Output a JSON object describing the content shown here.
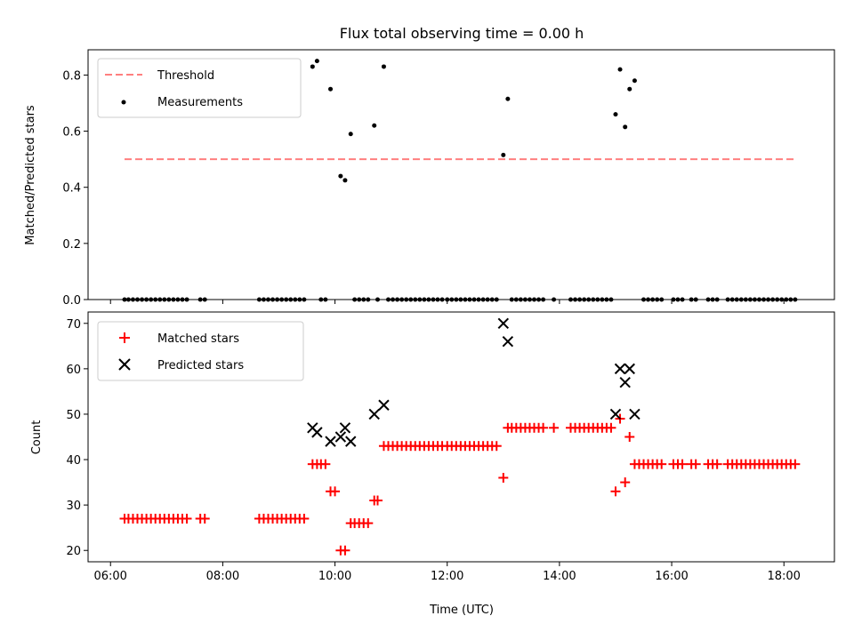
{
  "chart_data": [
    {
      "type": "scatter",
      "title": "Flux total observing time = 0.00 h",
      "xlabel": "",
      "ylabel": "Matched/Predicted stars",
      "xlim": [
        5.6,
        18.9
      ],
      "ylim": [
        0,
        0.89
      ],
      "yticks": [
        0.0,
        0.2,
        0.4,
        0.6,
        0.8
      ],
      "ytick_labels": [
        "0.0",
        "0.2",
        "0.4",
        "0.6",
        "0.8"
      ],
      "xticks": [
        6,
        8,
        10,
        12,
        14,
        16,
        18
      ],
      "show_xtick_labels": false,
      "grid": false,
      "legend_position": "upper left",
      "legend": [
        "Threshold",
        "Measurements"
      ],
      "threshold": {
        "name": "Threshold",
        "value": 0.5,
        "x": [
          6.25,
          18.2
        ],
        "color": "#ff7f7f",
        "style": "dashed"
      },
      "measurements": {
        "name": "Measurements",
        "color": "#000000",
        "points": [
          [
            6.25,
            0
          ],
          [
            6.32,
            0
          ],
          [
            6.4,
            0
          ],
          [
            6.48,
            0
          ],
          [
            6.56,
            0
          ],
          [
            6.64,
            0
          ],
          [
            6.72,
            0
          ],
          [
            6.8,
            0
          ],
          [
            6.88,
            0
          ],
          [
            6.96,
            0
          ],
          [
            7.04,
            0
          ],
          [
            7.12,
            0
          ],
          [
            7.2,
            0
          ],
          [
            7.28,
            0
          ],
          [
            7.36,
            0
          ],
          [
            7.6,
            0
          ],
          [
            7.68,
            0
          ],
          [
            8.65,
            0
          ],
          [
            8.73,
            0
          ],
          [
            8.81,
            0
          ],
          [
            8.89,
            0
          ],
          [
            8.97,
            0
          ],
          [
            9.05,
            0
          ],
          [
            9.13,
            0
          ],
          [
            9.21,
            0
          ],
          [
            9.29,
            0
          ],
          [
            9.37,
            0
          ],
          [
            9.45,
            0
          ],
          [
            9.6,
            0.83
          ],
          [
            9.68,
            0.85
          ],
          [
            9.75,
            0
          ],
          [
            9.83,
            0
          ],
          [
            9.92,
            0.75
          ],
          [
            10.1,
            0.44
          ],
          [
            10.18,
            0.425
          ],
          [
            10.28,
            0.59
          ],
          [
            10.35,
            0
          ],
          [
            10.43,
            0
          ],
          [
            10.51,
            0
          ],
          [
            10.59,
            0
          ],
          [
            10.7,
            0.62
          ],
          [
            10.76,
            0
          ],
          [
            10.87,
            0.83
          ],
          [
            10.95,
            0
          ],
          [
            11.03,
            0
          ],
          [
            11.11,
            0
          ],
          [
            11.19,
            0
          ],
          [
            11.27,
            0
          ],
          [
            11.35,
            0
          ],
          [
            11.43,
            0
          ],
          [
            11.51,
            0
          ],
          [
            11.59,
            0
          ],
          [
            11.67,
            0
          ],
          [
            11.75,
            0
          ],
          [
            11.83,
            0
          ],
          [
            11.91,
            0
          ],
          [
            12.0,
            0
          ],
          [
            12.08,
            0
          ],
          [
            12.16,
            0
          ],
          [
            12.24,
            0
          ],
          [
            12.32,
            0
          ],
          [
            12.4,
            0
          ],
          [
            12.48,
            0
          ],
          [
            12.56,
            0
          ],
          [
            12.64,
            0
          ],
          [
            12.72,
            0
          ],
          [
            12.8,
            0
          ],
          [
            12.88,
            0
          ],
          [
            13.0,
            0.515
          ],
          [
            13.08,
            0.715
          ],
          [
            13.15,
            0
          ],
          [
            13.23,
            0
          ],
          [
            13.31,
            0
          ],
          [
            13.39,
            0
          ],
          [
            13.47,
            0
          ],
          [
            13.55,
            0
          ],
          [
            13.63,
            0
          ],
          [
            13.71,
            0
          ],
          [
            13.9,
            0
          ],
          [
            14.2,
            0
          ],
          [
            14.28,
            0
          ],
          [
            14.36,
            0
          ],
          [
            14.44,
            0
          ],
          [
            14.52,
            0
          ],
          [
            14.6,
            0
          ],
          [
            14.68,
            0
          ],
          [
            14.76,
            0
          ],
          [
            14.84,
            0
          ],
          [
            14.92,
            0
          ],
          [
            15.0,
            0.66
          ],
          [
            15.08,
            0.82
          ],
          [
            15.17,
            0.615
          ],
          [
            15.25,
            0.75
          ],
          [
            15.34,
            0.78
          ],
          [
            15.5,
            0
          ],
          [
            15.58,
            0
          ],
          [
            15.66,
            0
          ],
          [
            15.74,
            0
          ],
          [
            15.82,
            0
          ],
          [
            16.03,
            0
          ],
          [
            16.11,
            0
          ],
          [
            16.19,
            0
          ],
          [
            16.35,
            0
          ],
          [
            16.43,
            0
          ],
          [
            16.65,
            0
          ],
          [
            16.73,
            0
          ],
          [
            16.81,
            0
          ],
          [
            17.0,
            0
          ],
          [
            17.08,
            0
          ],
          [
            17.16,
            0
          ],
          [
            17.24,
            0
          ],
          [
            17.32,
            0
          ],
          [
            17.4,
            0
          ],
          [
            17.48,
            0
          ],
          [
            17.56,
            0
          ],
          [
            17.64,
            0
          ],
          [
            17.72,
            0
          ],
          [
            17.8,
            0
          ],
          [
            17.88,
            0
          ],
          [
            17.96,
            0
          ],
          [
            18.04,
            0
          ],
          [
            18.12,
            0
          ],
          [
            18.2,
            0
          ]
        ]
      }
    },
    {
      "type": "scatter",
      "title": "",
      "xlabel": "Time (UTC)",
      "ylabel": "Count",
      "xlim": [
        5.6,
        18.9
      ],
      "ylim": [
        17.5,
        72.5
      ],
      "yticks": [
        20,
        30,
        40,
        50,
        60,
        70
      ],
      "ytick_labels": [
        "20",
        "30",
        "40",
        "50",
        "60",
        "70"
      ],
      "xticks": [
        6,
        8,
        10,
        12,
        14,
        16,
        18
      ],
      "xtick_labels": [
        "06:00",
        "08:00",
        "10:00",
        "12:00",
        "14:00",
        "16:00",
        "18:00"
      ],
      "grid": false,
      "legend_position": "upper left",
      "legend": [
        "Matched stars",
        "Predicted stars"
      ],
      "series": [
        {
          "name": "Matched stars",
          "marker": "plus",
          "color": "#ff0000",
          "points": [
            [
              6.25,
              27
            ],
            [
              6.32,
              27
            ],
            [
              6.4,
              27
            ],
            [
              6.48,
              27
            ],
            [
              6.56,
              27
            ],
            [
              6.64,
              27
            ],
            [
              6.72,
              27
            ],
            [
              6.8,
              27
            ],
            [
              6.88,
              27
            ],
            [
              6.96,
              27
            ],
            [
              7.04,
              27
            ],
            [
              7.12,
              27
            ],
            [
              7.2,
              27
            ],
            [
              7.28,
              27
            ],
            [
              7.36,
              27
            ],
            [
              7.6,
              27
            ],
            [
              7.68,
              27
            ],
            [
              8.65,
              27
            ],
            [
              8.73,
              27
            ],
            [
              8.81,
              27
            ],
            [
              8.89,
              27
            ],
            [
              8.97,
              27
            ],
            [
              9.05,
              27
            ],
            [
              9.13,
              27
            ],
            [
              9.21,
              27
            ],
            [
              9.29,
              27
            ],
            [
              9.37,
              27
            ],
            [
              9.45,
              27
            ],
            [
              9.6,
              39
            ],
            [
              9.68,
              39
            ],
            [
              9.75,
              39
            ],
            [
              9.83,
              39
            ],
            [
              9.92,
              33
            ],
            [
              10.0,
              33
            ],
            [
              10.1,
              20
            ],
            [
              10.18,
              20
            ],
            [
              10.28,
              26
            ],
            [
              10.35,
              26
            ],
            [
              10.43,
              26
            ],
            [
              10.51,
              26
            ],
            [
              10.59,
              26
            ],
            [
              10.7,
              31
            ],
            [
              10.76,
              31
            ],
            [
              10.87,
              43
            ],
            [
              10.95,
              43
            ],
            [
              11.03,
              43
            ],
            [
              11.11,
              43
            ],
            [
              11.19,
              43
            ],
            [
              11.27,
              43
            ],
            [
              11.35,
              43
            ],
            [
              11.43,
              43
            ],
            [
              11.51,
              43
            ],
            [
              11.59,
              43
            ],
            [
              11.67,
              43
            ],
            [
              11.75,
              43
            ],
            [
              11.83,
              43
            ],
            [
              11.91,
              43
            ],
            [
              12.0,
              43
            ],
            [
              12.08,
              43
            ],
            [
              12.16,
              43
            ],
            [
              12.24,
              43
            ],
            [
              12.32,
              43
            ],
            [
              12.4,
              43
            ],
            [
              12.48,
              43
            ],
            [
              12.56,
              43
            ],
            [
              12.64,
              43
            ],
            [
              12.72,
              43
            ],
            [
              12.8,
              43
            ],
            [
              12.88,
              43
            ],
            [
              13.0,
              36
            ],
            [
              13.08,
              47
            ],
            [
              13.15,
              47
            ],
            [
              13.23,
              47
            ],
            [
              13.31,
              47
            ],
            [
              13.39,
              47
            ],
            [
              13.47,
              47
            ],
            [
              13.55,
              47
            ],
            [
              13.63,
              47
            ],
            [
              13.71,
              47
            ],
            [
              13.9,
              47
            ],
            [
              14.2,
              47
            ],
            [
              14.28,
              47
            ],
            [
              14.36,
              47
            ],
            [
              14.44,
              47
            ],
            [
              14.52,
              47
            ],
            [
              14.6,
              47
            ],
            [
              14.68,
              47
            ],
            [
              14.76,
              47
            ],
            [
              14.84,
              47
            ],
            [
              14.92,
              47
            ],
            [
              15.0,
              33
            ],
            [
              15.08,
              49
            ],
            [
              15.17,
              35
            ],
            [
              15.25,
              45
            ],
            [
              15.34,
              39
            ],
            [
              15.42,
              39
            ],
            [
              15.5,
              39
            ],
            [
              15.58,
              39
            ],
            [
              15.66,
              39
            ],
            [
              15.74,
              39
            ],
            [
              15.82,
              39
            ],
            [
              16.03,
              39
            ],
            [
              16.11,
              39
            ],
            [
              16.19,
              39
            ],
            [
              16.35,
              39
            ],
            [
              16.43,
              39
            ],
            [
              16.65,
              39
            ],
            [
              16.73,
              39
            ],
            [
              16.81,
              39
            ],
            [
              17.0,
              39
            ],
            [
              17.08,
              39
            ],
            [
              17.16,
              39
            ],
            [
              17.24,
              39
            ],
            [
              17.32,
              39
            ],
            [
              17.4,
              39
            ],
            [
              17.48,
              39
            ],
            [
              17.56,
              39
            ],
            [
              17.64,
              39
            ],
            [
              17.72,
              39
            ],
            [
              17.8,
              39
            ],
            [
              17.88,
              39
            ],
            [
              17.96,
              39
            ],
            [
              18.04,
              39
            ],
            [
              18.12,
              39
            ],
            [
              18.2,
              39
            ]
          ]
        },
        {
          "name": "Predicted stars",
          "marker": "x",
          "color": "#000000",
          "points": [
            [
              9.6,
              47
            ],
            [
              9.68,
              46
            ],
            [
              9.92,
              44
            ],
            [
              10.1,
              45
            ],
            [
              10.18,
              47
            ],
            [
              10.28,
              44
            ],
            [
              10.7,
              50
            ],
            [
              10.87,
              52
            ],
            [
              13.0,
              70
            ],
            [
              13.08,
              66
            ],
            [
              15.0,
              50
            ],
            [
              15.08,
              60
            ],
            [
              15.17,
              57
            ],
            [
              15.25,
              60
            ],
            [
              15.34,
              50
            ]
          ]
        }
      ]
    }
  ]
}
